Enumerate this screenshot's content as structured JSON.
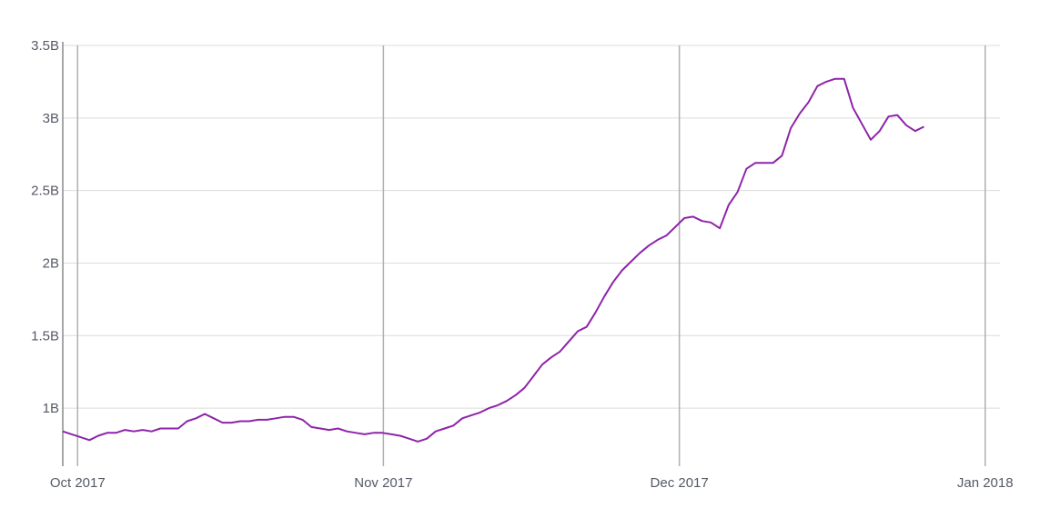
{
  "chart_data": {
    "type": "line",
    "title": "",
    "xlabel": "",
    "ylabel": "",
    "y_ticks": [
      {
        "value": 1.0,
        "label": "1B"
      },
      {
        "value": 1.5,
        "label": "1.5B"
      },
      {
        "value": 2.0,
        "label": "2B"
      },
      {
        "value": 2.5,
        "label": "2.5B"
      },
      {
        "value": 3.0,
        "label": "3B"
      },
      {
        "value": 3.5,
        "label": "3.5B"
      }
    ],
    "x_ticks": [
      {
        "day": 1,
        "label": "Oct 2017"
      },
      {
        "day": 32,
        "label": "Nov 2017"
      },
      {
        "day": 62,
        "label": "Dec 2017"
      },
      {
        "day": 93,
        "label": "Jan 2018"
      }
    ],
    "x_unit": "day (Oct 1 2017 = day 1)",
    "y_unit": "billions",
    "xlim": [
      -0.5,
      94.5
    ],
    "ylim": [
      0.6,
      3.5
    ],
    "grid": true,
    "legend": "none",
    "colors": {
      "line": "#8e24aa",
      "grid": "#dcdcdc",
      "vgrid": "#b0b0b0",
      "text": "#555a66"
    },
    "series": [
      {
        "values": [
          [
            -0.5,
            0.84
          ],
          [
            0.4,
            0.82
          ],
          [
            1.3,
            0.8
          ],
          [
            2.2,
            0.78
          ],
          [
            3.1,
            0.81
          ],
          [
            4.0,
            0.83
          ],
          [
            4.9,
            0.83
          ],
          [
            5.8,
            0.85
          ],
          [
            6.7,
            0.84
          ],
          [
            7.6,
            0.85
          ],
          [
            8.5,
            0.84
          ],
          [
            9.4,
            0.86
          ],
          [
            10.3,
            0.86
          ],
          [
            11.2,
            0.86
          ],
          [
            12.1,
            0.91
          ],
          [
            13.0,
            0.93
          ],
          [
            13.9,
            0.96
          ],
          [
            14.8,
            0.93
          ],
          [
            15.7,
            0.9
          ],
          [
            16.6,
            0.9
          ],
          [
            17.5,
            0.91
          ],
          [
            18.4,
            0.91
          ],
          [
            19.3,
            0.92
          ],
          [
            20.2,
            0.92
          ],
          [
            21.1,
            0.93
          ],
          [
            22.0,
            0.94
          ],
          [
            22.9,
            0.94
          ],
          [
            23.8,
            0.92
          ],
          [
            24.7,
            0.87
          ],
          [
            25.6,
            0.86
          ],
          [
            26.5,
            0.85
          ],
          [
            27.4,
            0.86
          ],
          [
            28.3,
            0.84
          ],
          [
            29.2,
            0.83
          ],
          [
            30.1,
            0.82
          ],
          [
            31.0,
            0.83
          ],
          [
            31.9,
            0.83
          ],
          [
            32.8,
            0.82
          ],
          [
            33.7,
            0.81
          ],
          [
            34.6,
            0.79
          ],
          [
            35.5,
            0.77
          ],
          [
            36.4,
            0.79
          ],
          [
            37.3,
            0.84
          ],
          [
            38.2,
            0.86
          ],
          [
            39.1,
            0.88
          ],
          [
            40.0,
            0.93
          ],
          [
            40.9,
            0.95
          ],
          [
            41.8,
            0.97
          ],
          [
            42.7,
            1.0
          ],
          [
            43.6,
            1.02
          ],
          [
            44.5,
            1.05
          ],
          [
            45.4,
            1.09
          ],
          [
            46.3,
            1.14
          ],
          [
            47.2,
            1.22
          ],
          [
            48.1,
            1.3
          ],
          [
            49.0,
            1.35
          ],
          [
            49.9,
            1.39
          ],
          [
            50.8,
            1.46
          ],
          [
            51.7,
            1.53
          ],
          [
            52.6,
            1.56
          ],
          [
            53.5,
            1.66
          ],
          [
            54.4,
            1.77
          ],
          [
            55.3,
            1.87
          ],
          [
            56.2,
            1.95
          ],
          [
            57.1,
            2.01
          ],
          [
            58.0,
            2.07
          ],
          [
            58.9,
            2.12
          ],
          [
            59.8,
            2.16
          ],
          [
            60.7,
            2.19
          ],
          [
            61.6,
            2.25
          ],
          [
            62.5,
            2.31
          ],
          [
            63.4,
            2.32
          ],
          [
            64.3,
            2.29
          ],
          [
            65.2,
            2.28
          ],
          [
            66.1,
            2.24
          ],
          [
            67.0,
            2.4
          ],
          [
            67.9,
            2.49
          ],
          [
            68.8,
            2.65
          ],
          [
            69.7,
            2.69
          ],
          [
            70.6,
            2.69
          ],
          [
            71.5,
            2.69
          ],
          [
            72.4,
            2.74
          ],
          [
            73.3,
            2.93
          ],
          [
            74.2,
            3.03
          ],
          [
            75.1,
            3.11
          ],
          [
            76.0,
            3.22
          ],
          [
            76.9,
            3.25
          ],
          [
            77.8,
            3.27
          ],
          [
            78.7,
            3.27
          ],
          [
            79.6,
            3.07
          ],
          [
            80.5,
            2.96
          ],
          [
            81.4,
            2.85
          ],
          [
            82.3,
            2.91
          ],
          [
            83.2,
            3.01
          ],
          [
            84.1,
            3.02
          ],
          [
            85.0,
            2.95
          ],
          [
            85.9,
            2.91
          ],
          [
            86.8,
            2.94
          ]
        ]
      }
    ]
  }
}
